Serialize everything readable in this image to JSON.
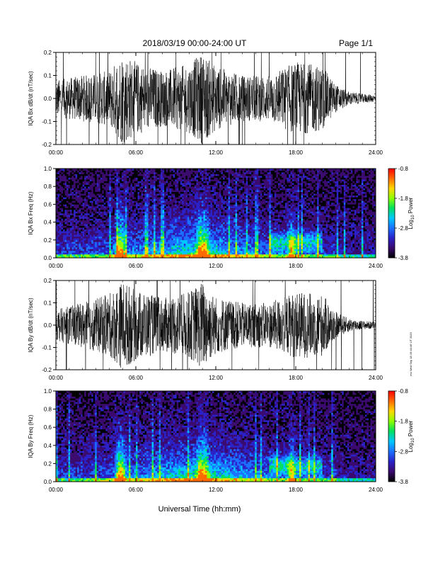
{
  "header": {
    "title": "2018/03/19   00:00-24:00 UT",
    "page": "Page 1/1"
  },
  "stamp": "rev Wed Sep 18 19:44:46 UT 2019",
  "x_axis": {
    "label": "Universal Time (hh:mm)",
    "ticks": [
      "00:00",
      "06:00",
      "12:00",
      "18:00",
      "24:00"
    ]
  },
  "colorbar": {
    "label_prefix": "Log",
    "label_sub": "10",
    "label_suffix": " Power",
    "ticks": [
      "-0.8",
      "-1.8",
      "-2.8",
      "-3.8"
    ],
    "colors": [
      "#000000",
      "#3a0a6e",
      "#2a22c8",
      "#1b70ff",
      "#00c8ff",
      "#00e060",
      "#8cff00",
      "#ffd800",
      "#ff6a00",
      "#ff0000"
    ]
  },
  "chart_data": [
    {
      "type": "line",
      "ylabel": "IQA Bx dB/dt (nT/sec)",
      "x_range_hours": [
        0,
        24
      ],
      "ylim": [
        -0.2,
        0.2
      ],
      "yticks": [
        "0.2",
        "0.1",
        "0.0",
        "-0.1",
        "-0.2"
      ],
      "color": "#000000",
      "envelope_hours": [
        0,
        2,
        4,
        5,
        6,
        8,
        10,
        11,
        12,
        14,
        16,
        18,
        20,
        21,
        22,
        23,
        24
      ],
      "envelope_amplitude": [
        0.08,
        0.1,
        0.12,
        0.2,
        0.16,
        0.12,
        0.15,
        0.2,
        0.14,
        0.1,
        0.1,
        0.16,
        0.14,
        0.06,
        0.03,
        0.02,
        0.015
      ]
    },
    {
      "type": "heatmap",
      "ylabel": "IQA Bx Freq (Hz)",
      "x_range_hours": [
        0,
        24
      ],
      "ylim": [
        0.0,
        1.0
      ],
      "yticks": [
        "1.0",
        "0.8",
        "0.6",
        "0.4",
        "0.2",
        "0.0"
      ],
      "clim": [
        -3.8,
        -0.8
      ]
    },
    {
      "type": "line",
      "ylabel": "IQA By dB/dt (nT/sec)",
      "x_range_hours": [
        0,
        24
      ],
      "ylim": [
        -0.2,
        0.2
      ],
      "yticks": [
        "0.2",
        "0.1",
        "0.0",
        "-0.1",
        "-0.2"
      ],
      "color": "#000000",
      "envelope_hours": [
        0,
        2,
        4,
        5,
        6,
        8,
        10,
        11,
        12,
        14,
        16,
        18,
        20,
        21,
        22,
        23,
        24
      ],
      "envelope_amplitude": [
        0.07,
        0.1,
        0.14,
        0.2,
        0.16,
        0.12,
        0.15,
        0.2,
        0.13,
        0.1,
        0.1,
        0.15,
        0.14,
        0.06,
        0.03,
        0.02,
        0.015
      ]
    },
    {
      "type": "heatmap",
      "ylabel": "IQA By Freq (Hz)",
      "x_range_hours": [
        0,
        24
      ],
      "ylim": [
        0.0,
        1.0
      ],
      "yticks": [
        "1.0",
        "0.8",
        "0.6",
        "0.4",
        "0.2",
        "0.0"
      ],
      "clim": [
        -3.8,
        -0.8
      ]
    }
  ]
}
